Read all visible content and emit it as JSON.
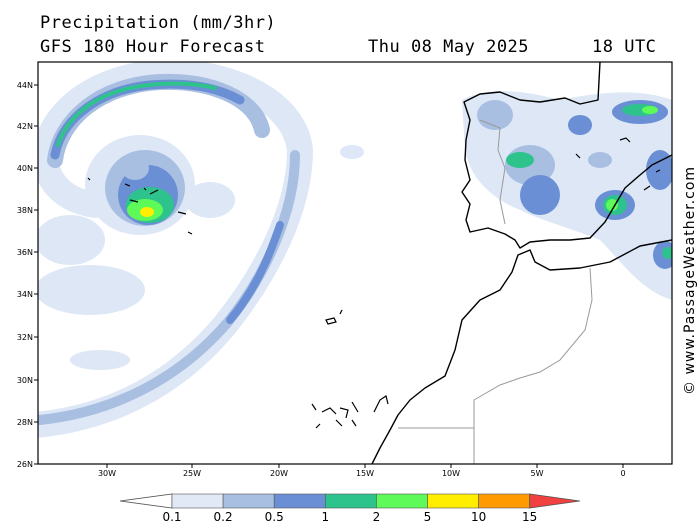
{
  "header": {
    "title": "Precipitation (mm/3hr)",
    "subtitle": "GFS 180 Hour Forecast",
    "date": "Thu 08 May 2025",
    "time": "18 UTC"
  },
  "credit": "© www.PassageWeather.com",
  "axes": {
    "lat_labels": [
      "44N",
      "42N",
      "40N",
      "38N",
      "36N",
      "34N",
      "32N",
      "30N",
      "28N",
      "26N"
    ],
    "lon_labels": [
      "30W",
      "25W",
      "20W",
      "15W",
      "10W",
      "5W",
      "0"
    ]
  },
  "legend": {
    "labels": [
      "0.1",
      "0.2",
      "0.5",
      "1",
      "2",
      "5",
      "10",
      "15"
    ],
    "colors": [
      "#ffffff",
      "#e1e9f6",
      "#a9bfe2",
      "#6b8fd4",
      "#2ec28c",
      "#5dfa5a",
      "#ffee00",
      "#ff9a00",
      "#f04040"
    ]
  },
  "colors": {
    "precip_light": "#dde7f6",
    "precip_lowmid": "#a9bfe2",
    "precip_mid": "#6b8fd4",
    "precip_teal": "#2ec28c",
    "precip_green": "#5dfa5a",
    "precip_yellow": "#ffee00",
    "coast": "#000000",
    "border": "#9a9a9a"
  }
}
